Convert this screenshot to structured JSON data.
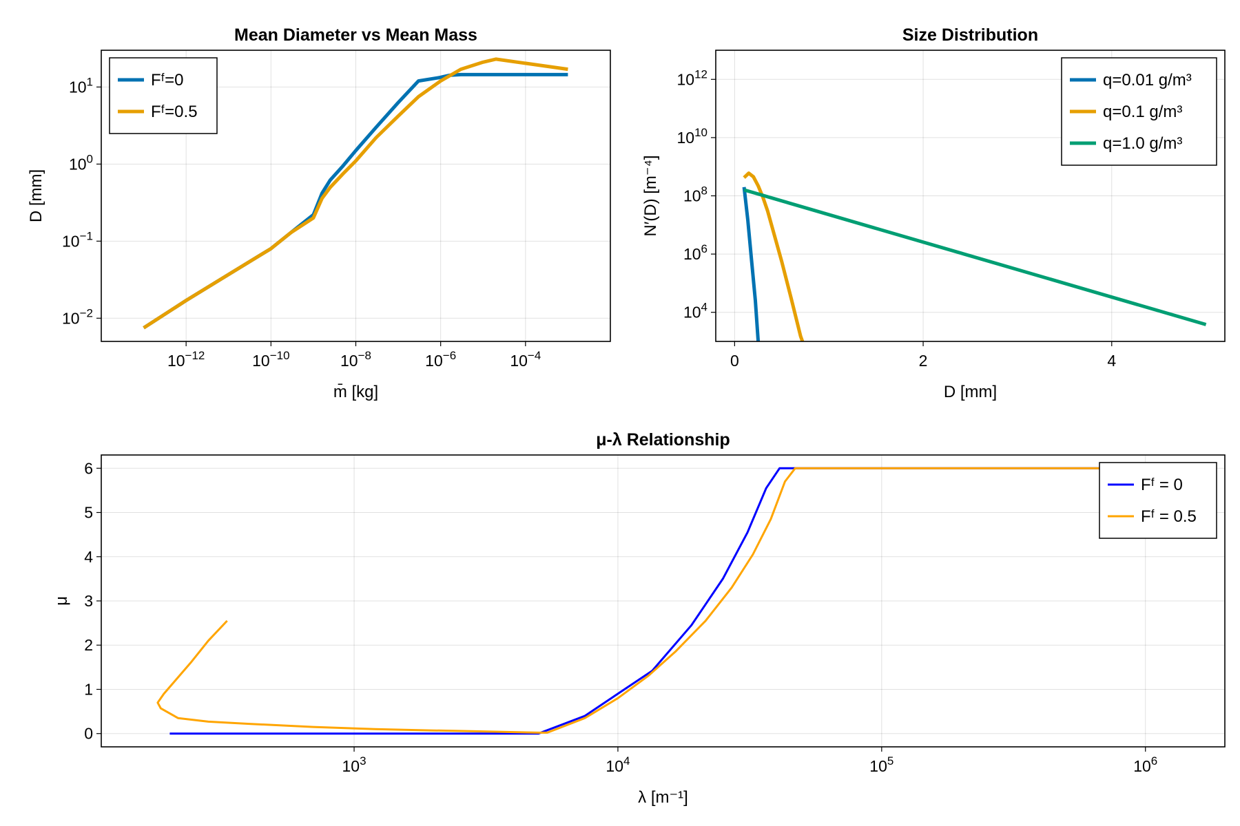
{
  "chart_data": [
    {
      "type": "line",
      "title": "Mean Diameter vs Mean Mass",
      "xlabel": "m̄ [kg]",
      "ylabel": "D [mm]",
      "xscale": "log10",
      "yscale": "log10",
      "xlim": [
        1e-14,
        0.01
      ],
      "ylim": [
        0.005,
        30
      ],
      "xticks": [
        {
          "value": 1e-12,
          "base": "10",
          "exp": "−12"
        },
        {
          "value": 1e-10,
          "base": "10",
          "exp": "−10"
        },
        {
          "value": 1e-08,
          "base": "10",
          "exp": "−8"
        },
        {
          "value": 1e-06,
          "base": "10",
          "exp": "−6"
        },
        {
          "value": 0.0001,
          "base": "10",
          "exp": "−4"
        }
      ],
      "yticks": [
        {
          "value": 0.01,
          "base": "10",
          "exp": "−2"
        },
        {
          "value": 0.1,
          "base": "10",
          "exp": "−1"
        },
        {
          "value": 1,
          "base": "10",
          "exp": "0"
        },
        {
          "value": 10,
          "base": "10",
          "exp": "1"
        }
      ],
      "grid": true,
      "legend_position": "top-left",
      "series": [
        {
          "name": "Fᶠ=0",
          "color": "#0072b2",
          "width": 5,
          "x": [
            1e-13,
            1e-12,
            1e-11,
            1e-10,
            3e-10,
            1e-09,
            1.6e-09,
            2.5e-09,
            5e-09,
            1e-08,
            3e-08,
            1e-07,
            3e-07,
            9e-07,
            1.6e-06,
            3e-06,
            0.0001,
            0.001
          ],
          "y": [
            0.0075,
            0.017,
            0.037,
            0.08,
            0.13,
            0.22,
            0.42,
            0.62,
            0.95,
            1.5,
            3.0,
            6.3,
            12,
            13.2,
            14.2,
            14.5,
            14.5,
            14.5
          ]
        },
        {
          "name": "Fᶠ=0.5",
          "color": "#e69f00",
          "width": 5,
          "x": [
            1e-13,
            1e-12,
            1e-11,
            1e-10,
            3e-10,
            1e-09,
            1.6e-09,
            2.5e-09,
            5e-09,
            1e-08,
            3e-08,
            1e-07,
            3e-07,
            1e-06,
            3e-06,
            1e-05,
            2e-05,
            0.001
          ],
          "y": [
            0.0075,
            0.017,
            0.037,
            0.08,
            0.13,
            0.2,
            0.36,
            0.5,
            0.75,
            1.1,
            2.2,
            4.2,
            7.5,
            12,
            17,
            21,
            23,
            17
          ]
        }
      ]
    },
    {
      "type": "line",
      "title": "Size Distribution",
      "xlabel": "D [mm]",
      "ylabel": "N′(D) [m⁻⁴]",
      "xscale": "linear",
      "yscale": "log10",
      "xlim": [
        -0.2,
        5.2
      ],
      "ylim": [
        1000,
        10000000000000.0
      ],
      "xticks": [
        {
          "value": 0,
          "label": "0"
        },
        {
          "value": 2,
          "label": "2"
        },
        {
          "value": 4,
          "label": "4"
        }
      ],
      "yticks": [
        {
          "value": 10000.0,
          "base": "10",
          "exp": "4"
        },
        {
          "value": 1000000.0,
          "base": "10",
          "exp": "6"
        },
        {
          "value": 100000000.0,
          "base": "10",
          "exp": "8"
        },
        {
          "value": 10000000000.0,
          "base": "10",
          "exp": "10"
        },
        {
          "value": 1000000000000.0,
          "base": "10",
          "exp": "12"
        }
      ],
      "grid": true,
      "legend_position": "top-right",
      "series": [
        {
          "name": "q=0.01 g/m³",
          "color": "#0072b2",
          "width": 5,
          "x": [
            0.1,
            0.14,
            0.18,
            0.22,
            0.25
          ],
          "y": [
            200000000.0,
            15000000.0,
            600000.0,
            25000.0,
            1000
          ]
        },
        {
          "name": "q=0.1 g/m³",
          "color": "#e69f00",
          "width": 5,
          "x": [
            0.1,
            0.15,
            0.2,
            0.25,
            0.3,
            0.35,
            0.4,
            0.5,
            0.6,
            0.7,
            0.72
          ],
          "y": [
            420000000.0,
            600000000.0,
            450000000.0,
            220000000.0,
            90000000.0,
            30000000.0,
            8000000.0,
            550000.0,
            30000.0,
            1500,
            1000
          ]
        },
        {
          "name": "q=1.0 g/m³",
          "color": "#009e73",
          "width": 5,
          "x": [
            0.1,
            5.0
          ],
          "y": [
            160000000.0,
            3800.0
          ]
        }
      ]
    },
    {
      "type": "line",
      "title": "μ-λ Relationship",
      "xlabel": "λ [m⁻¹]",
      "ylabel": "μ",
      "xscale": "log10",
      "yscale": "linear",
      "xlim": [
        110,
        2000000.0
      ],
      "ylim": [
        -0.3,
        6.3
      ],
      "xticks": [
        {
          "value": 1000,
          "base": "10",
          "exp": "3"
        },
        {
          "value": 10000,
          "base": "10",
          "exp": "4"
        },
        {
          "value": 100000,
          "base": "10",
          "exp": "5"
        },
        {
          "value": 1000000,
          "base": "10",
          "exp": "6"
        }
      ],
      "yticks": [
        {
          "value": 0,
          "label": "0"
        },
        {
          "value": 1,
          "label": "1"
        },
        {
          "value": 2,
          "label": "2"
        },
        {
          "value": 3,
          "label": "3"
        },
        {
          "value": 4,
          "label": "4"
        },
        {
          "value": 5,
          "label": "5"
        },
        {
          "value": 6,
          "label": "6"
        }
      ],
      "grid": true,
      "legend_position": "top-right",
      "series": [
        {
          "name": "Fᶠ = 0",
          "color": "#0000ff",
          "width": 3,
          "x": [
            200,
            500,
            1000,
            2000,
            5000,
            7500,
            10000,
            13500,
            19000,
            25000,
            31000,
            36500,
            41000,
            1600000
          ],
          "y": [
            0,
            0,
            0,
            0,
            0,
            0.4,
            0.9,
            1.42,
            2.45,
            3.5,
            4.55,
            5.55,
            6,
            6
          ]
        },
        {
          "name": "Fᶠ = 0.5",
          "color": "#ffa500",
          "width": 3,
          "x": [
            330,
            280,
            240,
            210,
            190,
            180,
            185,
            215,
            280,
            400,
            700,
            1200,
            2000,
            3000,
            5000,
            5400,
            7500,
            10000,
            13000,
            16500,
            21500,
            27000,
            32500,
            38000,
            43000,
            47000,
            1600000
          ],
          "y": [
            2.55,
            2.1,
            1.6,
            1.2,
            0.9,
            0.7,
            0.57,
            0.35,
            0.27,
            0.22,
            0.15,
            0.1,
            0.07,
            0.05,
            0.02,
            0.02,
            0.35,
            0.8,
            1.3,
            1.85,
            2.55,
            3.3,
            4.05,
            4.85,
            5.7,
            6,
            6
          ]
        }
      ]
    }
  ]
}
